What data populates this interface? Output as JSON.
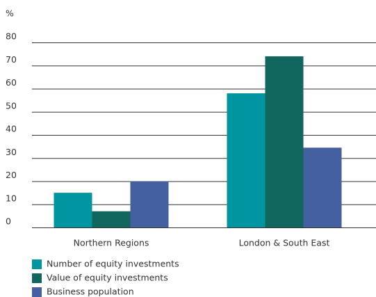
{
  "chart_data": {
    "type": "bar",
    "y_label": "%",
    "categories": [
      "Northern Regions",
      "London & South East"
    ],
    "series": [
      {
        "name": "Number of equity investments",
        "color": "#0095a0",
        "values": [
          15,
          58
        ]
      },
      {
        "name": "Value of equity investments",
        "color": "#11665e",
        "values": [
          7,
          74
        ]
      },
      {
        "name": "Business population",
        "color": "#4560a0",
        "values": [
          20,
          34.5
        ]
      }
    ],
    "ylim": [
      0,
      80
    ],
    "yticks": [
      0,
      10,
      20,
      30,
      40,
      50,
      60,
      70,
      80
    ],
    "grid": true
  }
}
